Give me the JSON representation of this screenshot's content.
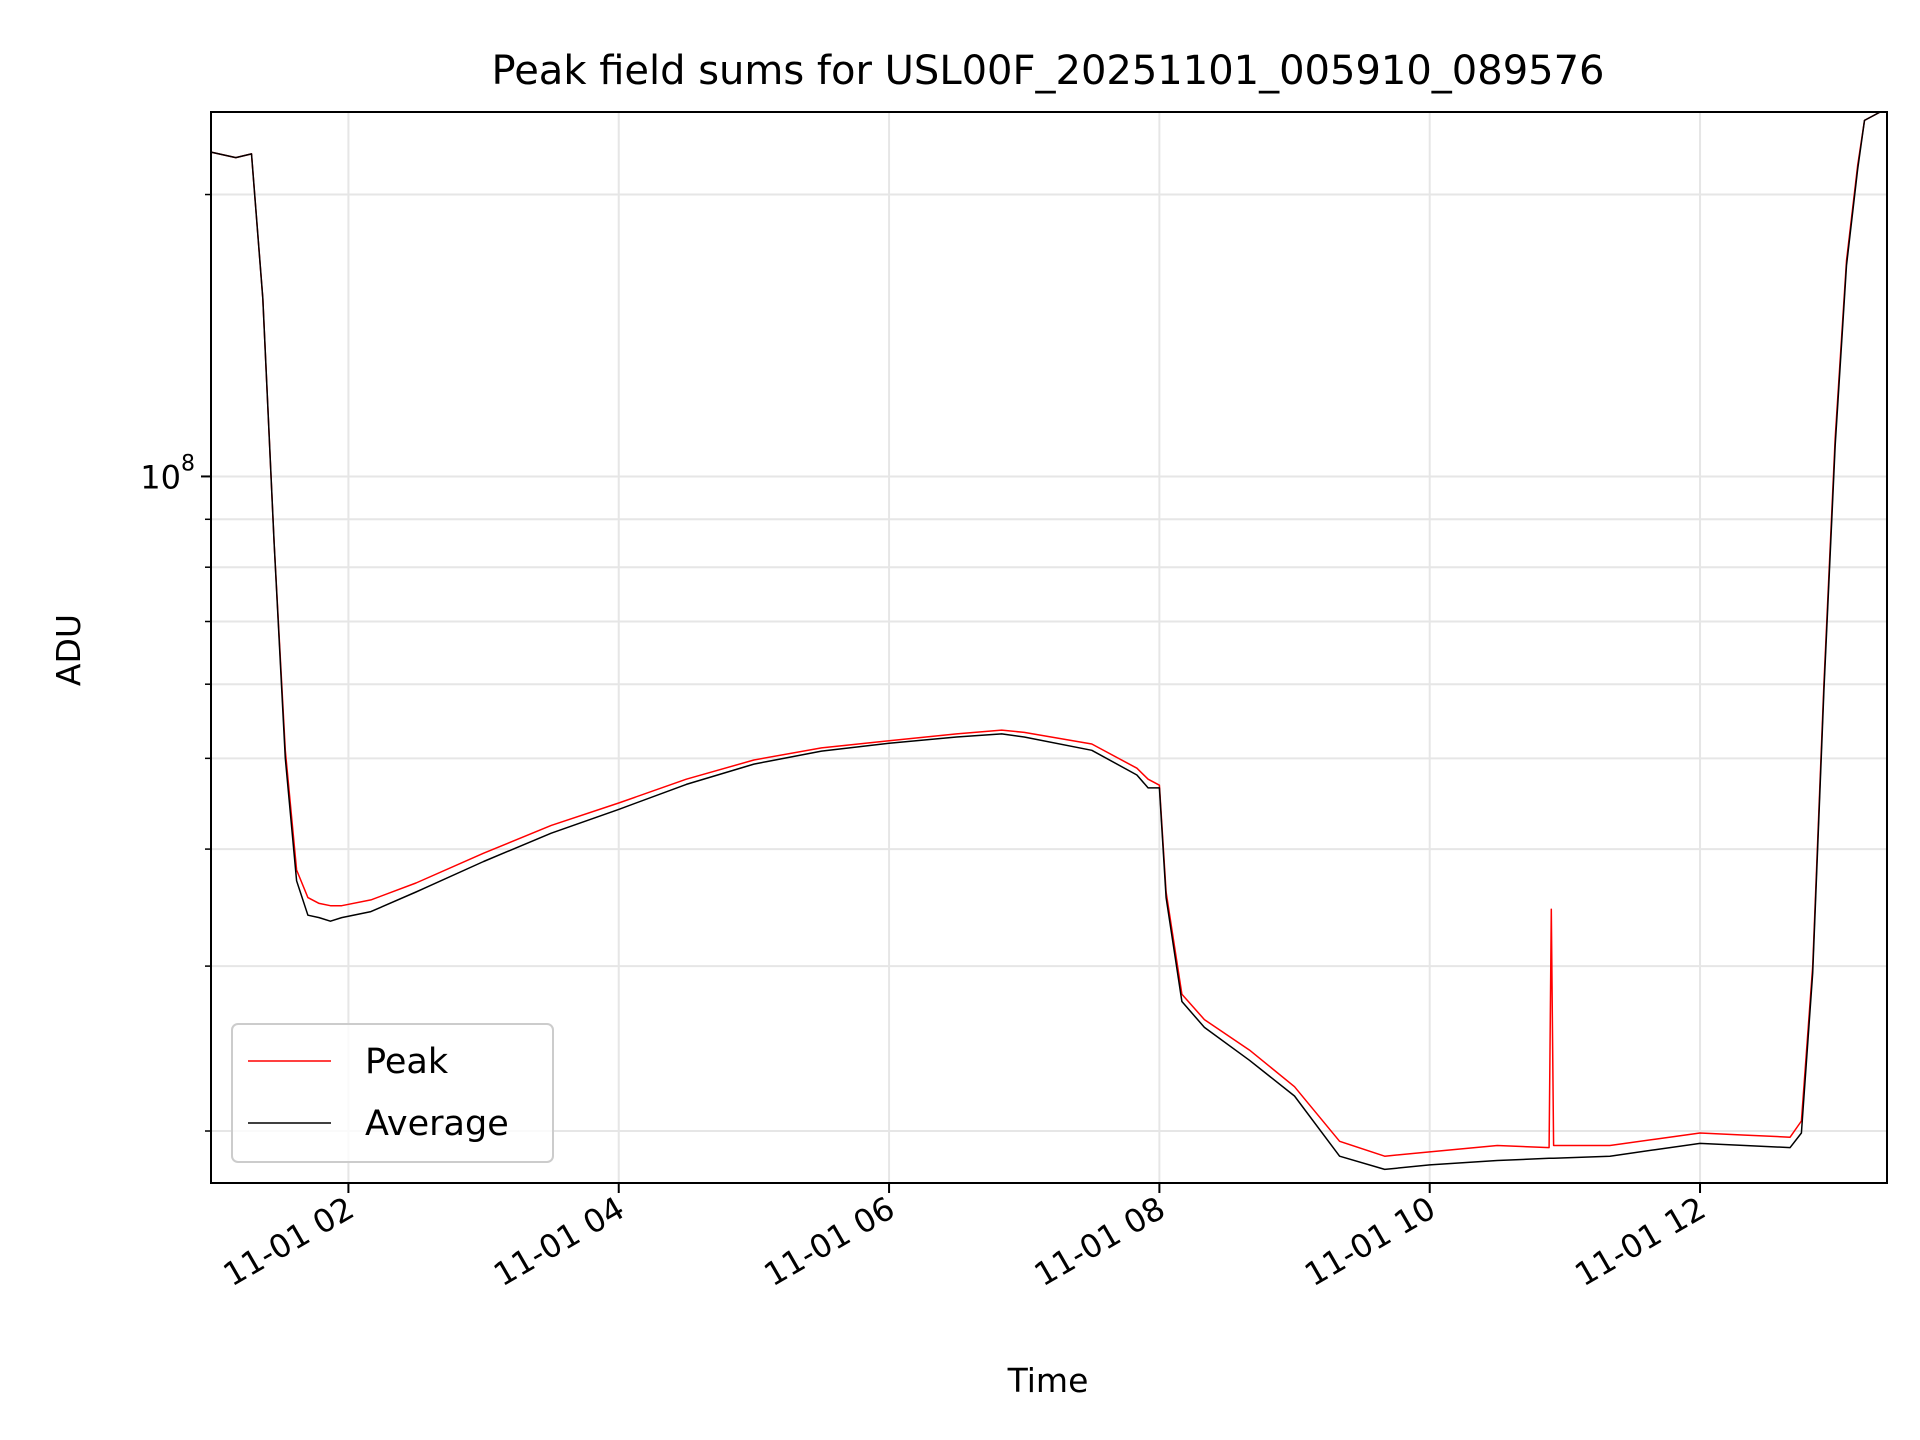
{
  "chart_data": {
    "type": "line",
    "title": "Peak field sums for USL00F_20251101_005910_089576",
    "xlabel": "Time",
    "ylabel": "ADU",
    "y_scale": "log",
    "x_tick_labels": [
      "11-01 02",
      "11-01 04",
      "11-01 06",
      "11-01 08",
      "11-01 10",
      "11-01 12"
    ],
    "y_tick_label": {
      "base": "10",
      "exp": "8"
    },
    "xlim": [
      "2025-11-01 00:59",
      "2025-11-01 13:23"
    ],
    "ylim": [
      17600000,
      245000000
    ],
    "grid": true,
    "legend": "lower-left",
    "colors": {
      "Peak": "#ff0000",
      "Average": "#000000"
    },
    "series": [
      {
        "name": "Peak",
        "x": [
          "00:59",
          "01:10",
          "01:17",
          "01:22",
          "01:27",
          "01:32",
          "01:37",
          "01:42",
          "01:47",
          "01:52",
          "01:57",
          "02:10",
          "02:30",
          "03:00",
          "03:30",
          "04:00",
          "04:30",
          "05:00",
          "05:30",
          "06:00",
          "06:30",
          "06:50",
          "07:00",
          "07:30",
          "07:50",
          "07:55",
          "08:00",
          "08:03",
          "08:10",
          "08:20",
          "08:40",
          "09:00",
          "09:20",
          "09:40",
          "10:00",
          "10:30",
          "10:53",
          "10:54",
          "10:55",
          "11:20",
          "11:40",
          "12:00",
          "12:20",
          "12:40",
          "12:45",
          "12:50",
          "12:55",
          "13:00",
          "13:05",
          "13:10",
          "13:13",
          "13:20"
        ],
        "y": [
          222000000,
          219000000,
          221000000,
          155000000,
          85000000,
          51000000,
          38000000,
          35500000,
          35000000,
          34800000,
          34800000,
          35300000,
          36800000,
          39600000,
          42400000,
          44800000,
          47500000,
          49800000,
          51300000,
          52200000,
          53100000,
          53600000,
          53300000,
          51800000,
          48800000,
          47500000,
          46800000,
          36000000,
          28000000,
          26300000,
          24400000,
          22300000,
          19500000,
          18800000,
          19000000,
          19300000,
          19200000,
          34500000,
          19300000,
          19300000,
          19600000,
          19900000,
          19800000,
          19700000,
          20500000,
          30000000,
          60000000,
          110000000,
          170000000,
          215000000,
          240000000,
          245000000
        ]
      },
      {
        "name": "Average",
        "x": [
          "00:59",
          "01:10",
          "01:17",
          "01:22",
          "01:27",
          "01:32",
          "01:37",
          "01:42",
          "01:47",
          "01:52",
          "01:57",
          "02:10",
          "02:30",
          "03:00",
          "03:30",
          "04:00",
          "04:30",
          "05:00",
          "05:30",
          "06:00",
          "06:30",
          "06:50",
          "07:00",
          "07:30",
          "07:50",
          "07:55",
          "08:00",
          "08:03",
          "08:10",
          "08:20",
          "08:40",
          "09:00",
          "09:20",
          "09:40",
          "10:00",
          "10:30",
          "10:53",
          "10:54",
          "10:55",
          "11:20",
          "11:40",
          "12:00",
          "12:20",
          "12:40",
          "12:45",
          "12:50",
          "12:55",
          "13:00",
          "13:05",
          "13:10",
          "13:13",
          "13:20"
        ],
        "y": [
          222000000,
          219000000,
          221000000,
          155000000,
          85000000,
          50000000,
          37000000,
          34000000,
          33800000,
          33500000,
          33800000,
          34300000,
          36000000,
          38800000,
          41600000,
          44100000,
          46900000,
          49300000,
          50900000,
          51900000,
          52700000,
          53100000,
          52700000,
          51000000,
          48000000,
          46500000,
          46500000,
          35500000,
          27500000,
          25800000,
          23800000,
          21800000,
          18800000,
          18200000,
          18400000,
          18600000,
          18700000,
          18700000,
          18700000,
          18800000,
          19100000,
          19400000,
          19300000,
          19200000,
          19900000,
          29500000,
          59000000,
          108000000,
          168000000,
          213000000,
          240000000,
          245000000
        ]
      }
    ]
  }
}
